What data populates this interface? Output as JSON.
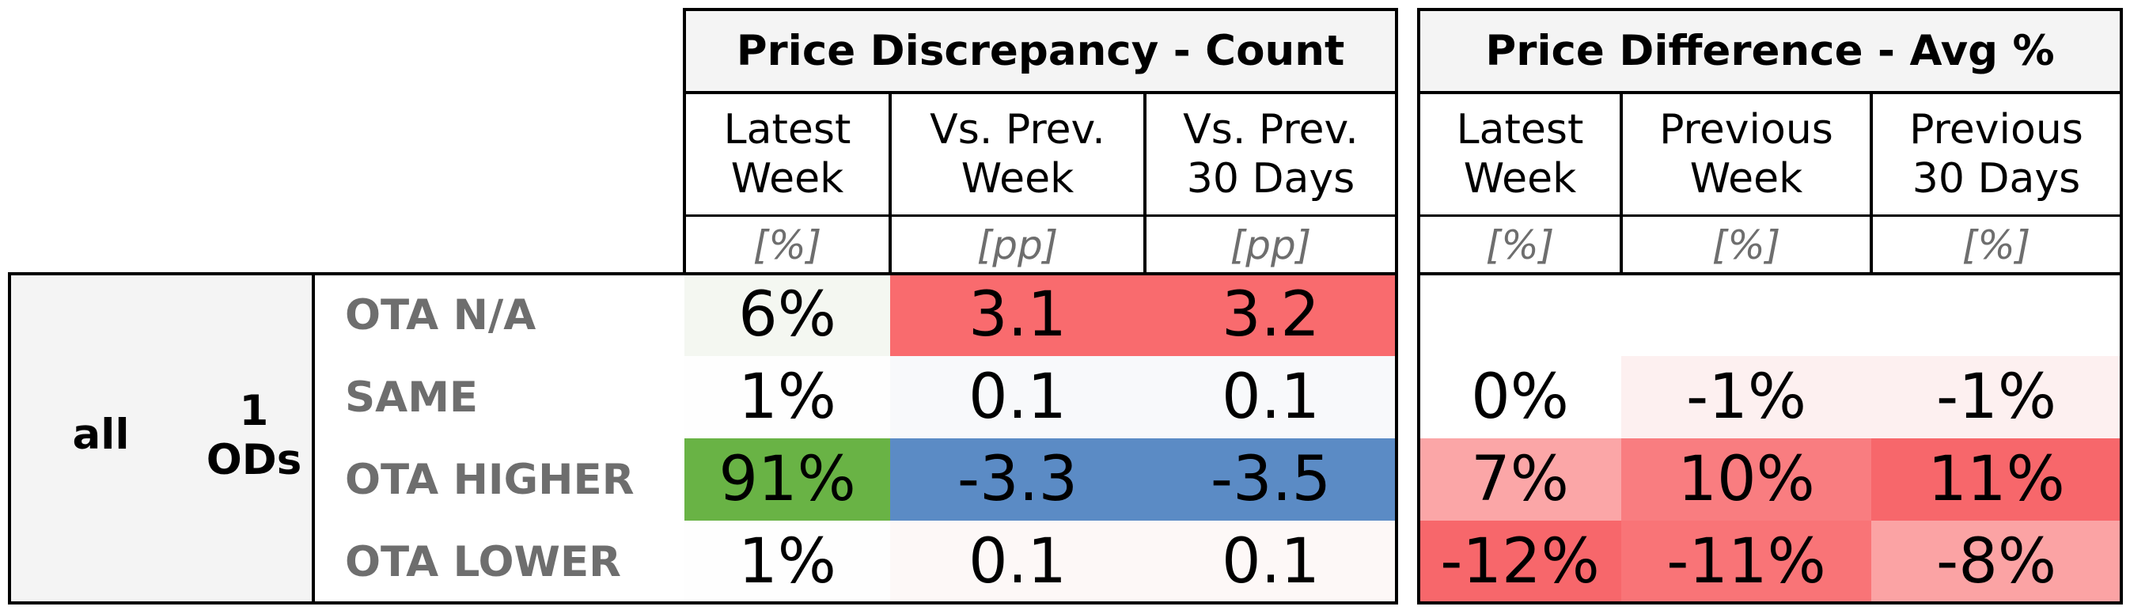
{
  "sections": [
    {
      "title": "Price Discrepancy - Count",
      "columns": [
        {
          "header": "Latest\nWeek",
          "unit": "[%]"
        },
        {
          "header": "Vs. Prev.\nWeek",
          "unit": "[pp]"
        },
        {
          "header": "Vs. Prev.\n30 Days",
          "unit": "[pp]"
        }
      ]
    },
    {
      "title": "Price Difference - Avg %",
      "columns": [
        {
          "header": "Latest\nWeek",
          "unit": "[%]"
        },
        {
          "header": "Previous\nWeek",
          "unit": "[%]"
        },
        {
          "header": "Previous\n30 Days",
          "unit": "[%]"
        }
      ]
    }
  ],
  "group": {
    "label": "all",
    "sublabel": "1\nODs"
  },
  "rows": [
    {
      "label": "OTA N/A",
      "count": [
        {
          "text": "6%",
          "color": "#f4f7f1"
        },
        {
          "text": "3.1",
          "color": "#f96b6e"
        },
        {
          "text": "3.2",
          "color": "#f96b6e"
        }
      ],
      "avg": [
        {
          "text": "",
          "color": "#ffffff"
        },
        {
          "text": "",
          "color": "#ffffff"
        },
        {
          "text": "",
          "color": "#ffffff"
        }
      ]
    },
    {
      "label": "SAME",
      "count": [
        {
          "text": "1%",
          "color": "#fefefe"
        },
        {
          "text": "0.1",
          "color": "#f8f9fb"
        },
        {
          "text": "0.1",
          "color": "#f8f9fb"
        }
      ],
      "avg": [
        {
          "text": "0%",
          "color": "#ffffff"
        },
        {
          "text": "-1%",
          "color": "#fdf0f0"
        },
        {
          "text": "-1%",
          "color": "#fdf0f0"
        }
      ]
    },
    {
      "label": "OTA HIGHER",
      "count": [
        {
          "text": "91%",
          "color": "#69b345"
        },
        {
          "text": "-3.3",
          "color": "#5b8bc5"
        },
        {
          "text": "-3.5",
          "color": "#5b8bc5"
        }
      ],
      "avg": [
        {
          "text": "7%",
          "color": "#fba6a7"
        },
        {
          "text": "10%",
          "color": "#f97d80"
        },
        {
          "text": "11%",
          "color": "#f7676b"
        }
      ]
    },
    {
      "label": "OTA LOWER",
      "count": [
        {
          "text": "1%",
          "color": "#fefefe"
        },
        {
          "text": "0.1",
          "color": "#fdf8f7"
        },
        {
          "text": "0.1",
          "color": "#fdf8f7"
        }
      ],
      "avg": [
        {
          "text": "-12%",
          "color": "#f7676b"
        },
        {
          "text": "-11%",
          "color": "#f97477"
        },
        {
          "text": "-8%",
          "color": "#fba3a4"
        }
      ]
    }
  ]
}
